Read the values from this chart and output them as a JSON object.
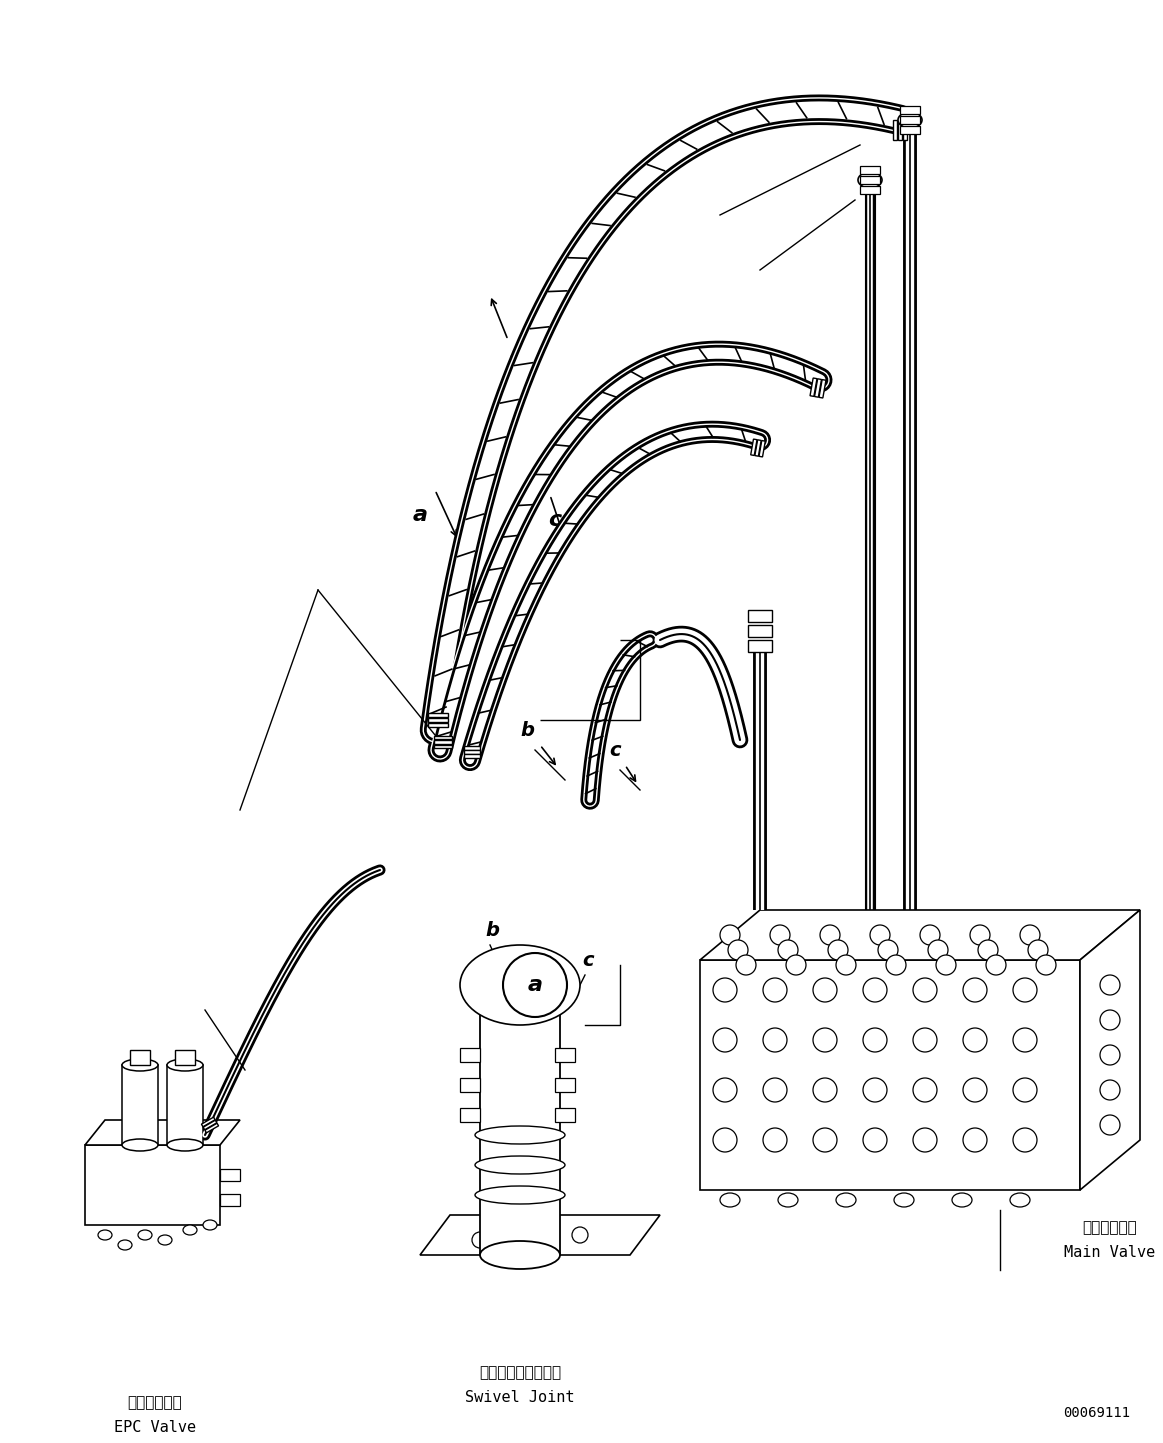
{
  "background_color": "#ffffff",
  "line_color": "#000000",
  "figure_width": 11.63,
  "figure_height": 14.43,
  "dpi": 100,
  "labels": {
    "epc_valve_jp": "ＥＰＣバルブ",
    "epc_valve_en": "EPC Valve",
    "swivel_joint_jp": "スイベルジョイント",
    "swivel_joint_en": "Swivel Joint",
    "main_valve_jp": "メインバルブ",
    "main_valve_en": "Main Valve",
    "drawing_number": "00069111"
  },
  "font_size": 11
}
